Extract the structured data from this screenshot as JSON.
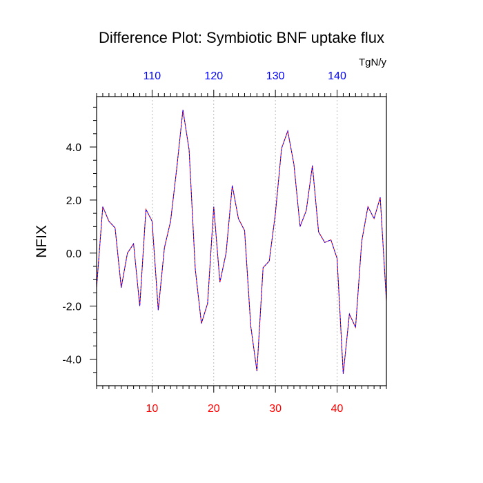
{
  "chart_data": {
    "type": "line",
    "title": "Difference Plot: Symbiotic BNF uptake flux",
    "units": "TgN/y",
    "ylabel": "NFIX",
    "xlabel": "",
    "x_range": [
      1,
      48
    ],
    "ylim": [
      -5.0,
      5.9
    ],
    "yticks": [
      -4.0,
      -2.0,
      0.0,
      2.0,
      4.0
    ],
    "ytick_labels": [
      "-4.0",
      "-2.0",
      "0.0",
      "2.0",
      "4.0"
    ],
    "xticks_bottom": [
      10,
      20,
      30,
      40
    ],
    "xtick_labels_bottom": [
      "10",
      "20",
      "30",
      "40"
    ],
    "xticks_top": [
      10,
      20,
      30,
      40
    ],
    "xtick_labels_top": [
      "110",
      "120",
      "130",
      "140"
    ],
    "vertical_gridlines": [
      10,
      20,
      30,
      40
    ],
    "colors": {
      "bottom_tick_labels": "#ff0000",
      "top_tick_labels": "#0000ff",
      "series_line_a": "#ff0000",
      "series_line_b": "#0000ff",
      "gridline": "#aaaaaa"
    },
    "x": [
      1,
      2,
      3,
      4,
      5,
      6,
      7,
      8,
      9,
      10,
      11,
      12,
      13,
      14,
      15,
      16,
      17,
      18,
      19,
      20,
      21,
      22,
      23,
      24,
      25,
      26,
      27,
      28,
      29,
      30,
      31,
      32,
      33,
      34,
      35,
      36,
      37,
      38,
      39,
      40,
      41,
      42,
      43,
      44,
      45,
      46,
      47,
      48
    ],
    "series": [
      {
        "values": [
          -1.3,
          1.75,
          1.2,
          0.95,
          -1.3,
          0.0,
          0.35,
          -2.0,
          1.65,
          1.2,
          -2.15,
          0.2,
          1.2,
          3.2,
          5.4,
          3.9,
          -0.6,
          -2.65,
          -1.9,
          1.75,
          -1.1,
          0.0,
          2.55,
          1.3,
          0.85,
          -2.75,
          -4.45,
          -0.55,
          -0.3,
          1.5,
          3.95,
          4.6,
          3.35,
          1.0,
          1.6,
          3.3,
          0.8,
          0.4,
          0.5,
          -0.2,
          -4.55,
          -2.3,
          -2.8,
          0.45,
          1.75,
          1.3,
          2.1,
          -1.8
        ]
      }
    ]
  }
}
